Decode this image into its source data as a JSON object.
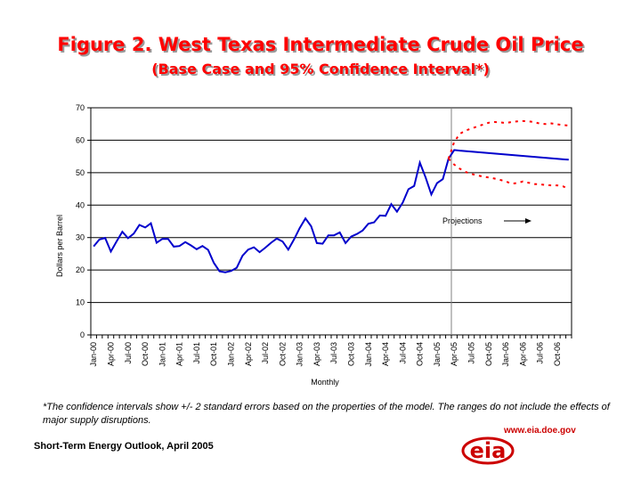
{
  "title": "Figure 2. West Texas Intermediate Crude Oil Price",
  "subtitle": "(Base Case and 95% Confidence Interval*)",
  "footnote": "*The confidence intervals show +/- 2 standard errors based on the properties of the model. The ranges do not include the effects of major supply disruptions.",
  "source": "Short-Term Energy Outlook, April 2005",
  "logo": {
    "text": "eia",
    "url": "www.eia.doe.gov"
  },
  "colors": {
    "title": "#ff0000",
    "series": "#0000cc",
    "confidence": "#ff0000",
    "divider": "#808080"
  },
  "chart_data": {
    "type": "line",
    "xlabel": "Monthly",
    "ylabel": "Dollars per Barrel",
    "ylim": [
      0,
      70
    ],
    "yticks": [
      0,
      10,
      20,
      30,
      40,
      50,
      60,
      70
    ],
    "grid": true,
    "x_tick_labels": [
      "Jan-00",
      "Apr-00",
      "Jul-00",
      "Oct-00",
      "Jan-01",
      "Apr-01",
      "Jul-01",
      "Oct-01",
      "Jan-02",
      "Apr-02",
      "Jul-02",
      "Oct-02",
      "Jan-03",
      "Apr-03",
      "Jul-03",
      "Oct-03",
      "Jan-04",
      "Apr-04",
      "Jul-04",
      "Oct-04",
      "Jan-05",
      "Apr-05",
      "Jul-05",
      "Oct-05",
      "Jan-06",
      "Apr-06",
      "Jul-06",
      "Oct-06"
    ],
    "x_range": [
      "Jan-00",
      "Dec-06"
    ],
    "forecast_start": "Apr-05",
    "annotation": "Projections",
    "series": [
      {
        "style": "solid",
        "color": "#0000cc",
        "points": [
          [
            "Jan-00",
            27.3
          ],
          [
            "Feb-00",
            29.4
          ],
          [
            "Mar-00",
            29.9
          ],
          [
            "Apr-00",
            25.7
          ],
          [
            "May-00",
            28.8
          ],
          [
            "Jun-00",
            31.8
          ],
          [
            "Jul-00",
            29.8
          ],
          [
            "Aug-00",
            31.2
          ],
          [
            "Sep-00",
            33.9
          ],
          [
            "Oct-00",
            33.1
          ],
          [
            "Nov-00",
            34.4
          ],
          [
            "Dec-00",
            28.4
          ],
          [
            "Jan-01",
            29.6
          ],
          [
            "Feb-01",
            29.6
          ],
          [
            "Mar-01",
            27.2
          ],
          [
            "Apr-01",
            27.4
          ],
          [
            "May-01",
            28.6
          ],
          [
            "Jun-01",
            27.6
          ],
          [
            "Jul-01",
            26.4
          ],
          [
            "Aug-01",
            27.4
          ],
          [
            "Sep-01",
            26.2
          ],
          [
            "Oct-01",
            22.2
          ],
          [
            "Nov-01",
            19.6
          ],
          [
            "Dec-01",
            19.3
          ],
          [
            "Jan-02",
            19.7
          ],
          [
            "Feb-02",
            20.7
          ],
          [
            "Mar-02",
            24.4
          ],
          [
            "Apr-02",
            26.3
          ],
          [
            "May-02",
            27.0
          ],
          [
            "Jun-02",
            25.5
          ],
          [
            "Jul-02",
            26.9
          ],
          [
            "Aug-02",
            28.4
          ],
          [
            "Sep-02",
            29.7
          ],
          [
            "Oct-02",
            28.8
          ],
          [
            "Nov-02",
            26.3
          ],
          [
            "Dec-02",
            29.4
          ],
          [
            "Jan-03",
            32.9
          ],
          [
            "Feb-03",
            35.9
          ],
          [
            "Mar-03",
            33.5
          ],
          [
            "Apr-03",
            28.3
          ],
          [
            "May-03",
            28.1
          ],
          [
            "Jun-03",
            30.7
          ],
          [
            "Jul-03",
            30.7
          ],
          [
            "Aug-03",
            31.6
          ],
          [
            "Sep-03",
            28.3
          ],
          [
            "Oct-03",
            30.3
          ],
          [
            "Nov-03",
            31.1
          ],
          [
            "Dec-03",
            32.2
          ],
          [
            "Jan-04",
            34.3
          ],
          [
            "Feb-04",
            34.7
          ],
          [
            "Mar-04",
            36.8
          ],
          [
            "Apr-04",
            36.7
          ],
          [
            "May-04",
            40.3
          ],
          [
            "Jun-04",
            38.0
          ],
          [
            "Jul-04",
            40.8
          ],
          [
            "Aug-04",
            44.9
          ],
          [
            "Sep-04",
            45.9
          ],
          [
            "Oct-04",
            53.1
          ],
          [
            "Nov-04",
            48.5
          ],
          [
            "Dec-04",
            43.3
          ],
          [
            "Jan-05",
            46.8
          ],
          [
            "Feb-05",
            48.0
          ],
          [
            "Mar-05",
            54.3
          ],
          [
            "Apr-05",
            57.0
          ],
          [
            "May-05",
            56.8
          ],
          [
            "Dec-06",
            54.0
          ]
        ]
      },
      {
        "style": "dotted",
        "color": "#ff0000",
        "points": [
          [
            "Mar-05",
            54.3
          ],
          [
            "Apr-05",
            59.5
          ],
          [
            "May-05",
            62.0
          ],
          [
            "Jun-05",
            63.0
          ],
          [
            "Jul-05",
            63.6
          ],
          [
            "Aug-05",
            64.2
          ],
          [
            "Sep-05",
            64.8
          ],
          [
            "Oct-05",
            65.4
          ],
          [
            "Nov-05",
            65.6
          ],
          [
            "Dec-05",
            65.5
          ],
          [
            "Jan-06",
            65.3
          ],
          [
            "Feb-06",
            65.6
          ],
          [
            "Mar-06",
            65.8
          ],
          [
            "Apr-06",
            65.9
          ],
          [
            "May-06",
            65.8
          ],
          [
            "Jun-06",
            65.6
          ],
          [
            "Jul-06",
            65.1
          ],
          [
            "Aug-06",
            65.0
          ],
          [
            "Sep-06",
            65.2
          ],
          [
            "Oct-06",
            64.9
          ],
          [
            "Nov-06",
            64.7
          ],
          [
            "Dec-06",
            64.5
          ]
        ]
      },
      {
        "style": "dotted",
        "color": "#ff0000",
        "points": [
          [
            "Mar-05",
            54.3
          ],
          [
            "Apr-05",
            52.5
          ],
          [
            "May-05",
            51.2
          ],
          [
            "Jun-05",
            50.2
          ],
          [
            "Jul-05",
            49.6
          ],
          [
            "Aug-05",
            49.2
          ],
          [
            "Sep-05",
            48.8
          ],
          [
            "Oct-05",
            48.5
          ],
          [
            "Nov-05",
            48.2
          ],
          [
            "Dec-05",
            47.8
          ],
          [
            "Jan-06",
            47.3
          ],
          [
            "Feb-06",
            46.6
          ],
          [
            "Mar-06",
            46.8
          ],
          [
            "Apr-06",
            47.3
          ],
          [
            "May-06",
            46.9
          ],
          [
            "Jun-06",
            46.5
          ],
          [
            "Jul-06",
            46.4
          ],
          [
            "Aug-06",
            46.2
          ],
          [
            "Sep-06",
            46.1
          ],
          [
            "Oct-06",
            46.1
          ],
          [
            "Nov-06",
            45.8
          ],
          [
            "Dec-06",
            45.0
          ]
        ]
      }
    ]
  }
}
